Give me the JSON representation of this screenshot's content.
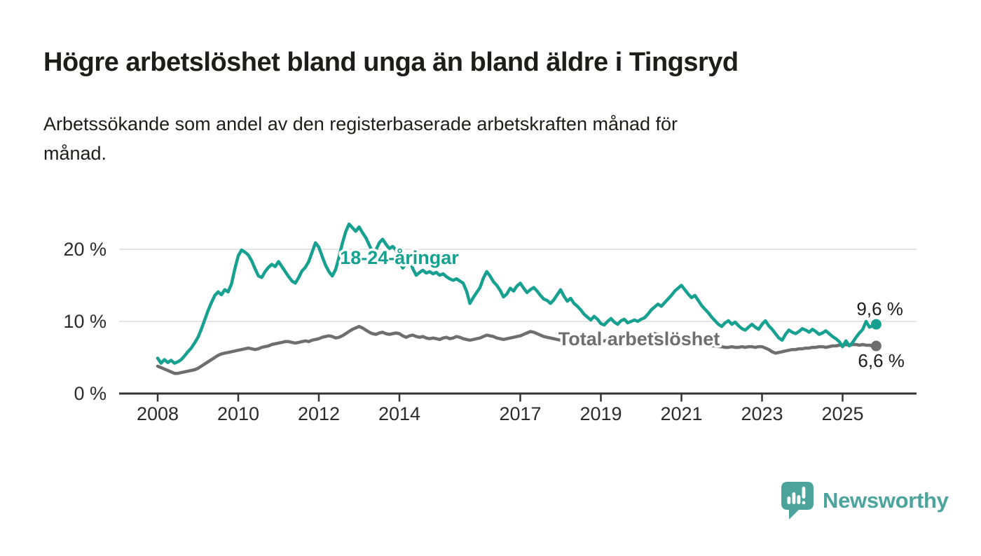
{
  "header": {
    "title": "Högre arbetslöshet bland unga än bland äldre i Tingsryd",
    "subtitle_line1": "Arbetssökande som andel av den registerbaserade arbetskraften månad för",
    "subtitle_line2": "månad."
  },
  "footer": {
    "brand": "Newsworthy",
    "brand_color": "#4aa39c"
  },
  "chart_data": {
    "type": "line",
    "title": "Högre arbetslöshet bland unga än bland äldre i Tingsryd",
    "subtitle": "Arbetssökande som andel av den registerbaserade arbetskraften månad för månad.",
    "x_unit": "month",
    "x_start": "2008-01",
    "x_end": "2025-11",
    "ylim": [
      0,
      24.5
    ],
    "grid": "horizontal",
    "grid_color": "#dcdcdc",
    "axis_color": "#333333",
    "tick_label_color": "#2b2b2b",
    "y_ticks": [
      {
        "value": 0,
        "label": "0 %"
      },
      {
        "value": 10,
        "label": "10 %"
      },
      {
        "value": 20,
        "label": "20 %"
      }
    ],
    "x_ticks": [
      {
        "year": 2008,
        "label": "2008"
      },
      {
        "year": 2010,
        "label": "2010"
      },
      {
        "year": 2012,
        "label": "2012"
      },
      {
        "year": 2014,
        "label": "2014"
      },
      {
        "year": 2017,
        "label": "2017"
      },
      {
        "year": 2019,
        "label": "2019"
      },
      {
        "year": 2021,
        "label": "2021"
      },
      {
        "year": 2023,
        "label": "2023"
      },
      {
        "year": 2025,
        "label": "2025"
      }
    ],
    "series": [
      {
        "name": "18-24-åringar",
        "color": "#16a091",
        "end_value": 9.6,
        "end_label": "9,6 %",
        "values": [
          4.9,
          4.2,
          4.7,
          4.3,
          4.6,
          4.2,
          4.4,
          4.7,
          5.2,
          5.8,
          6.3,
          7.0,
          7.8,
          8.9,
          10.2,
          11.5,
          12.6,
          13.6,
          14.1,
          13.7,
          14.4,
          14.1,
          15.2,
          17.3,
          19.1,
          19.9,
          19.6,
          19.2,
          18.4,
          17.3,
          16.3,
          16.1,
          16.9,
          17.5,
          17.9,
          17.6,
          18.3,
          17.6,
          16.9,
          16.2,
          15.6,
          15.3,
          16.1,
          17.0,
          17.5,
          18.3,
          19.6,
          20.9,
          20.3,
          19.0,
          17.8,
          16.9,
          16.3,
          17.2,
          18.9,
          20.8,
          22.4,
          23.5,
          23.0,
          22.5,
          23.1,
          22.3,
          21.6,
          20.6,
          19.6,
          19.9,
          20.9,
          21.4,
          20.7,
          20.1,
          20.4,
          19.9,
          18.3,
          17.4,
          18.0,
          18.4,
          17.3,
          16.4,
          16.8,
          17.1,
          16.7,
          16.9,
          16.6,
          16.8,
          16.4,
          16.6,
          16.2,
          15.9,
          15.7,
          15.9,
          15.6,
          15.3,
          14.2,
          12.5,
          13.3,
          14.0,
          14.7,
          16.0,
          16.9,
          16.3,
          15.5,
          15.0,
          14.3,
          13.4,
          13.8,
          14.6,
          14.2,
          14.9,
          15.3,
          14.6,
          14.0,
          14.4,
          14.7,
          14.2,
          13.6,
          13.1,
          12.9,
          12.5,
          13.0,
          13.7,
          14.4,
          13.5,
          12.8,
          13.2,
          12.5,
          12.1,
          11.6,
          11.0,
          10.6,
          10.2,
          10.7,
          10.3,
          9.7,
          9.5,
          10.0,
          10.4,
          9.9,
          9.6,
          10.1,
          10.3,
          9.8,
          10.0,
          10.2,
          10.0,
          10.3,
          10.5,
          11.0,
          11.6,
          12.0,
          12.4,
          12.1,
          12.6,
          13.1,
          13.6,
          14.2,
          14.6,
          15.0,
          14.4,
          13.8,
          13.3,
          13.6,
          12.9,
          12.2,
          11.7,
          11.2,
          10.6,
          10.1,
          9.6,
          9.3,
          9.8,
          10.1,
          9.6,
          9.9,
          9.4,
          9.0,
          8.8,
          9.2,
          9.6,
          9.2,
          8.9,
          9.6,
          10.1,
          9.4,
          8.9,
          8.3,
          7.7,
          7.4,
          8.2,
          8.8,
          8.5,
          8.3,
          8.6,
          9.0,
          8.8,
          8.5,
          8.9,
          8.6,
          8.2,
          8.4,
          8.7,
          8.3,
          7.9,
          7.6,
          7.2,
          6.5,
          7.3,
          6.6,
          7.1,
          7.8,
          8.4,
          8.9,
          10.0,
          9.2,
          9.4,
          9.6
        ]
      },
      {
        "name": "Total arbetslöshet",
        "color": "#6e6e6e",
        "end_value": 6.6,
        "end_label": "6,6 %",
        "values": [
          3.8,
          3.6,
          3.4,
          3.2,
          3.0,
          2.8,
          2.8,
          2.9,
          3.0,
          3.1,
          3.2,
          3.3,
          3.5,
          3.8,
          4.1,
          4.4,
          4.7,
          5.0,
          5.3,
          5.5,
          5.6,
          5.7,
          5.8,
          5.9,
          6.0,
          6.1,
          6.2,
          6.3,
          6.2,
          6.1,
          6.2,
          6.4,
          6.5,
          6.6,
          6.8,
          6.9,
          7.0,
          7.1,
          7.2,
          7.2,
          7.1,
          7.0,
          7.1,
          7.2,
          7.3,
          7.2,
          7.4,
          7.5,
          7.6,
          7.8,
          7.9,
          8.0,
          7.9,
          7.7,
          7.8,
          8.0,
          8.3,
          8.6,
          8.9,
          9.1,
          9.3,
          9.1,
          8.8,
          8.5,
          8.3,
          8.2,
          8.4,
          8.5,
          8.3,
          8.2,
          8.3,
          8.4,
          8.3,
          8.0,
          7.8,
          8.0,
          8.1,
          7.9,
          7.8,
          7.9,
          7.7,
          7.6,
          7.7,
          7.6,
          7.5,
          7.7,
          7.8,
          7.6,
          7.7,
          7.9,
          7.8,
          7.6,
          7.5,
          7.4,
          7.5,
          7.6,
          7.7,
          7.9,
          8.1,
          8.0,
          7.9,
          7.7,
          7.6,
          7.5,
          7.6,
          7.7,
          7.8,
          7.9,
          8.0,
          8.2,
          8.4,
          8.6,
          8.5,
          8.3,
          8.1,
          7.9,
          7.8,
          7.7,
          7.6,
          7.5,
          7.4,
          7.3,
          7.2,
          7.1,
          7.0,
          7.0,
          7.1,
          7.1,
          7.0,
          7.0,
          7.1,
          7.2,
          7.2,
          7.3,
          7.4,
          7.4,
          7.5,
          7.5,
          7.4,
          7.4,
          7.5,
          7.6,
          7.7,
          7.8,
          7.9,
          8.0,
          8.2,
          8.3,
          8.3,
          8.2,
          8.1,
          8.0,
          7.9,
          7.8,
          7.7,
          7.6,
          7.5,
          7.4,
          7.3,
          7.2,
          7.1,
          7.0,
          6.9,
          6.8,
          6.7,
          6.6,
          6.6,
          6.5,
          6.5,
          6.4,
          6.4,
          6.5,
          6.4,
          6.4,
          6.5,
          6.4,
          6.5,
          6.5,
          6.4,
          6.5,
          6.5,
          6.3,
          6.1,
          5.8,
          5.6,
          5.7,
          5.8,
          5.9,
          6.0,
          6.1,
          6.1,
          6.2,
          6.2,
          6.3,
          6.3,
          6.4,
          6.4,
          6.5,
          6.5,
          6.4,
          6.5,
          6.6,
          6.6,
          6.7,
          6.7,
          6.8,
          6.7,
          6.8,
          6.8,
          6.7,
          6.8,
          6.7,
          6.7,
          6.6,
          6.6
        ]
      }
    ]
  }
}
